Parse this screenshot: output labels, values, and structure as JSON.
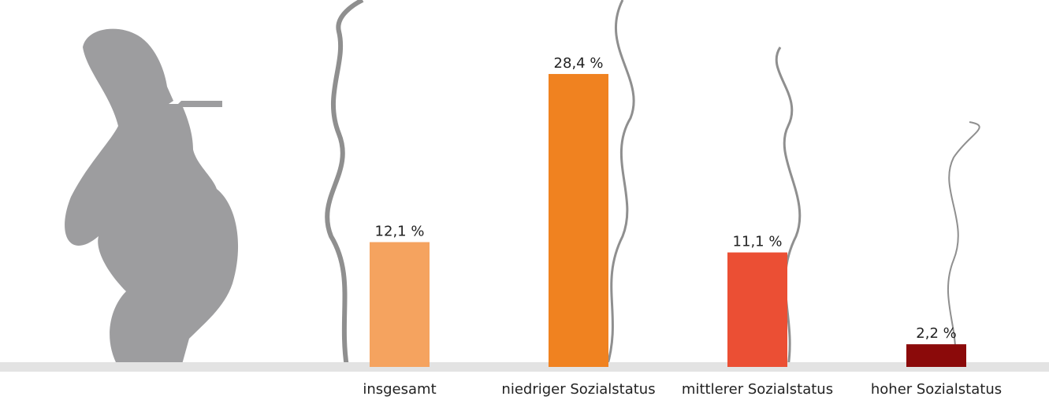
{
  "chart_data": {
    "type": "bar",
    "categories": [
      "insgesamt",
      "niedriger Sozialstatus",
      "mittlerer Sozialstatus",
      "hoher Sozialstatus"
    ],
    "values": [
      12.1,
      28.4,
      11.1,
      2.2
    ],
    "value_labels": [
      "12,1 %",
      "28,4 %",
      "11,1 %",
      "2,2 %"
    ],
    "colors": [
      "#f5a35f",
      "#f08220",
      "#eb4f34",
      "#8b0a0a"
    ]
  }
}
